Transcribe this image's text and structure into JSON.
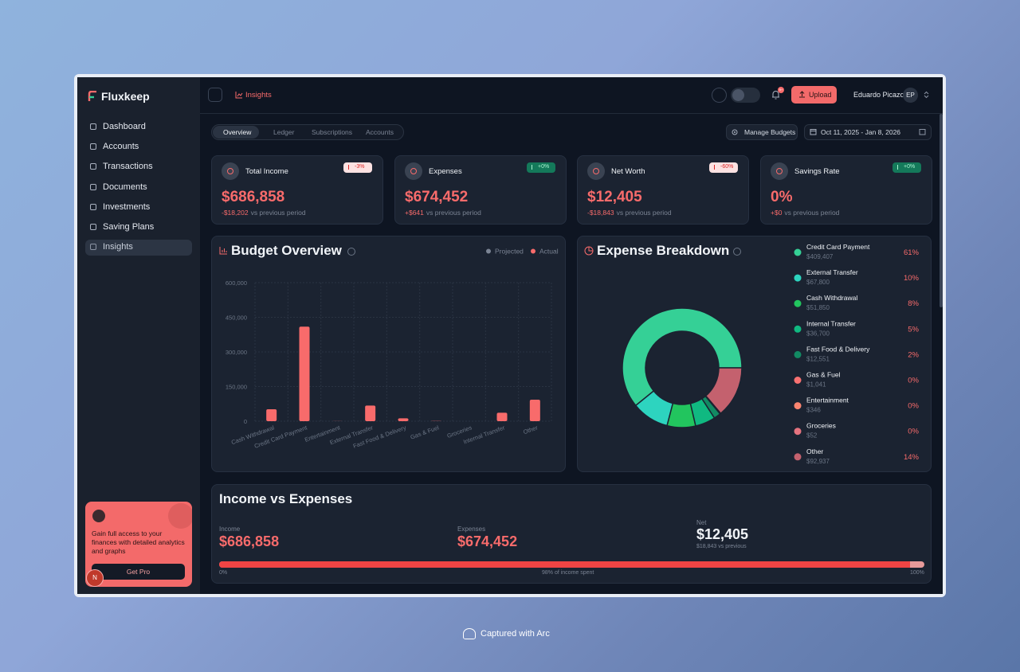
{
  "sidebar": {
    "brand": "Fluxkeep",
    "nav": [
      "Dashboard",
      "Accounts",
      "Transactions",
      "Documents",
      "Investments",
      "Saving Plans",
      "Insights"
    ],
    "active": 6,
    "promo": {
      "text": "Gain full access to your finances with detailed analytics and graphs",
      "button": "Get Pro"
    },
    "avatar": "N"
  },
  "topbar": {
    "breadcrumb": "Insights",
    "notification_badge": "9+",
    "upload": "Upload",
    "user": "Eduardo Picazo",
    "initials": "EP"
  },
  "tabs": {
    "items": [
      "Overview",
      "Ledger",
      "Subscriptions",
      "Accounts"
    ],
    "active": 0
  },
  "manage_budgets": "Manage Budgets",
  "date_range": "Oct 11, 2025 - Jan 8, 2026",
  "kpis": [
    {
      "label": "Total Income",
      "value": "$686,858",
      "change": "-3%",
      "trend": "down",
      "delta": "-$18,202",
      "compare": "vs previous period"
    },
    {
      "label": "Expenses",
      "value": "$674,452",
      "change": "+0%",
      "trend": "up",
      "delta": "+$641",
      "compare": "vs previous period"
    },
    {
      "label": "Net Worth",
      "value": "$12,405",
      "change": "-60%",
      "trend": "down",
      "delta": "-$18,843",
      "compare": "vs previous period"
    },
    {
      "label": "Savings Rate",
      "value": "0%",
      "change": "+0%",
      "trend": "up",
      "delta": "+$0",
      "compare": "vs previous period"
    }
  ],
  "budget_overview": {
    "title": "Budget Overview",
    "chart": {
      "type": "bar",
      "categories": [
        "Cash Withdrawal",
        "Credit Card Payment",
        "Entertainment",
        "External Transfer",
        "Fast Food & Delivery",
        "Gas & Fuel",
        "Groceries",
        "Internal Transfer",
        "Other"
      ],
      "series": [
        {
          "name": "Projected",
          "color": "#7b8494",
          "values": [
            0,
            0,
            0,
            0,
            0,
            0,
            0,
            0,
            0
          ]
        },
        {
          "name": "Actual",
          "color": "#f86b6b",
          "values": [
            51850,
            409407,
            346,
            67800,
            12551,
            1041,
            52,
            36700,
            92937
          ]
        }
      ],
      "ylim": [
        0,
        600000
      ],
      "yticks": [
        0,
        {
          "value": 150000,
          "label": "150,000"
        },
        {
          "value": 300000,
          "label": "300,000"
        },
        {
          "value": 450000,
          "label": "450,000"
        },
        {
          "value": 600000,
          "label": "600,000"
        }
      ],
      "grid": true
    }
  },
  "expense_breakdown": {
    "title": "Expense Breakdown",
    "chart": {
      "type": "donut",
      "categories": [
        "Credit Card Payment",
        "External Transfer",
        "Cash Withdrawal",
        "Internal Transfer",
        "Fast Food & Delivery",
        "Gas & Fuel",
        "Entertainment",
        "Groceries",
        "Other"
      ],
      "values": [
        409407,
        67800,
        51850,
        36700,
        12551,
        1041,
        346,
        52,
        92937
      ],
      "value_labels": [
        "$409,407",
        "$67,800",
        "$51,850",
        "$36,700",
        "$12,551",
        "$1,041",
        "$346",
        "$52",
        "$92,937"
      ],
      "percents": [
        61,
        10,
        8,
        5,
        2,
        0,
        0,
        0,
        14
      ],
      "percent_labels": [
        "61%",
        "10%",
        "8%",
        "5%",
        "2%",
        "0%",
        "0%",
        "0%",
        "14%"
      ],
      "colors": [
        "#35d096",
        "#2dd4bf",
        "#22c55e",
        "#10b981",
        "#128a63",
        "#f87171",
        "#fb8570",
        "#e5737f",
        "#c4616e"
      ]
    }
  },
  "income_vs_expenses": {
    "title": "Income vs Expenses",
    "income_label": "Income",
    "income": "$686,858",
    "expenses_label": "Expenses",
    "expenses": "$674,452",
    "net_label": "Net",
    "net": "$12,405",
    "net_note": "$18,843 vs previous",
    "progress": {
      "value": 98,
      "label": "98% of income spent",
      "min": {
        "value": 0,
        "label": "0%"
      },
      "max": {
        "value": 100,
        "label": "100%"
      }
    }
  },
  "footer": "Captured with Arc"
}
